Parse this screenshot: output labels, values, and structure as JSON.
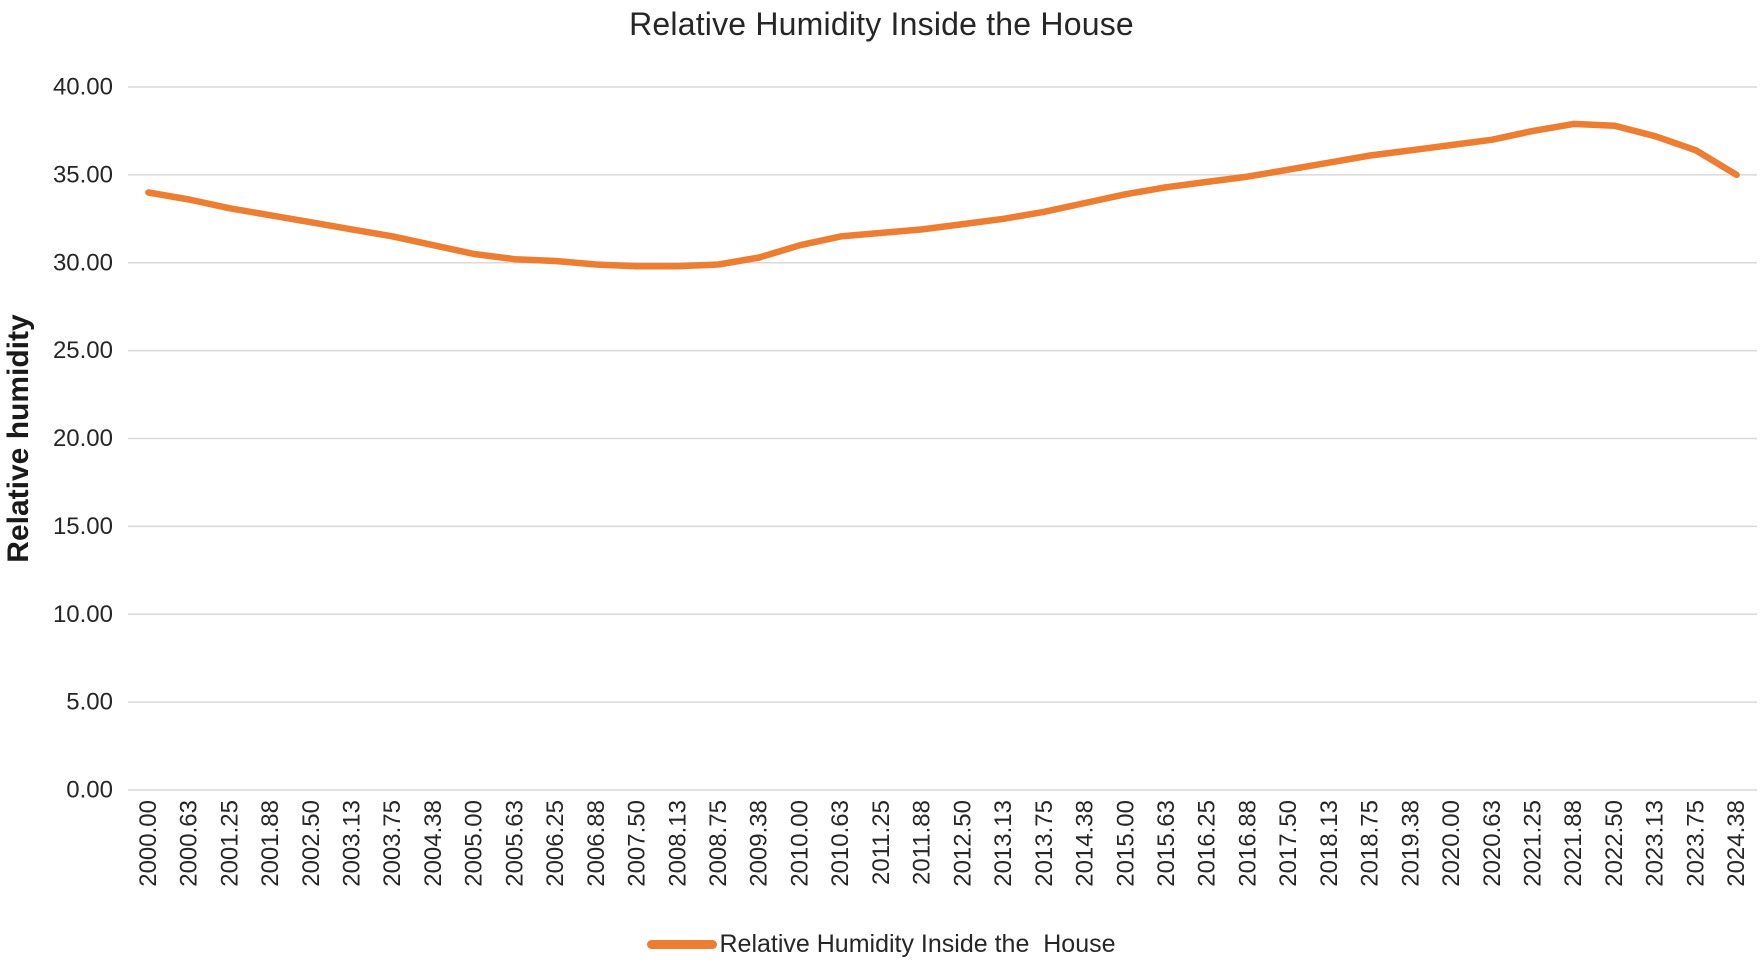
{
  "title": "Relative Humidity Inside the House",
  "y_axis_title": "Relative humidity",
  "legend": {
    "label": "Relative Humidity Inside the  House"
  },
  "colors": {
    "line": "#ED7D31",
    "gridline": "#D9D9D9",
    "axis_line": "#D9D9D9",
    "tick_text": "#262626",
    "background": "#FFFFFF"
  },
  "chart_data": {
    "type": "line",
    "title": "Relative Humidity Inside the House",
    "xlabel": "",
    "ylabel": "Relative humidity",
    "ylim": [
      0,
      40
    ],
    "ytick_step": 5,
    "ytick_labels": [
      "0.00",
      "5.00",
      "10.00",
      "15.00",
      "20.00",
      "25.00",
      "30.00",
      "35.00",
      "40.00"
    ],
    "grid": true,
    "legend_position": "bottom",
    "categories": [
      "2000.00",
      "2000.63",
      "2001.25",
      "2001.88",
      "2002.50",
      "2003.13",
      "2003.75",
      "2004.38",
      "2005.00",
      "2005.63",
      "2006.25",
      "2006.88",
      "2007.50",
      "2008.13",
      "2008.75",
      "2009.38",
      "2010.00",
      "2010.63",
      "2011.25",
      "2011.88",
      "2012.50",
      "2013.13",
      "2013.75",
      "2014.38",
      "2015.00",
      "2015.63",
      "2016.25",
      "2016.88",
      "2017.50",
      "2018.13",
      "2018.75",
      "2019.38",
      "2020.00",
      "2020.63",
      "2021.25",
      "2021.88",
      "2022.50",
      "2023.13",
      "2023.75",
      "2024.38"
    ],
    "series": [
      {
        "name": "Relative Humidity Inside the  House",
        "values": [
          34.0,
          33.6,
          33.1,
          32.7,
          32.3,
          31.9,
          31.5,
          31.0,
          30.5,
          30.2,
          30.1,
          29.9,
          29.8,
          29.8,
          29.9,
          30.3,
          31.0,
          31.5,
          31.7,
          31.9,
          32.2,
          32.5,
          32.9,
          33.4,
          33.9,
          34.3,
          34.6,
          34.9,
          35.3,
          35.7,
          36.1,
          36.4,
          36.7,
          37.0,
          37.5,
          37.9,
          37.8,
          37.2,
          36.4,
          35.0
        ]
      }
    ]
  }
}
